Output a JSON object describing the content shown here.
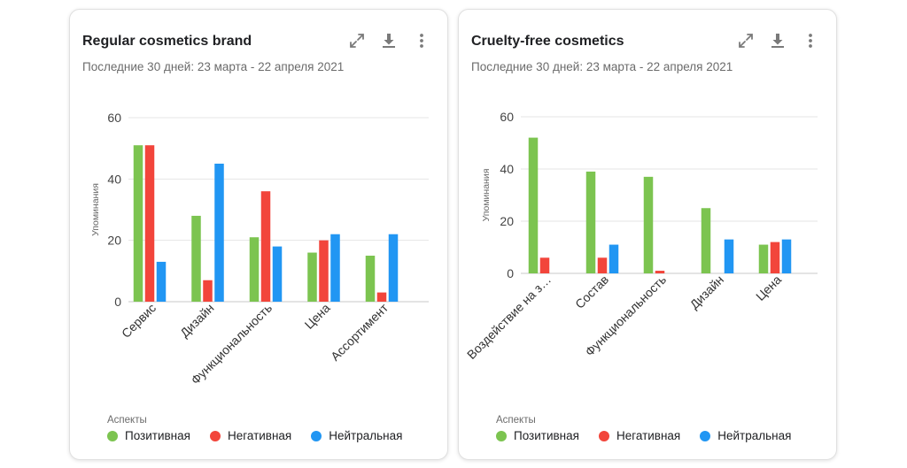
{
  "colors": {
    "positive": "#7cc450",
    "negative": "#f2453b",
    "neutral": "#2196f3"
  },
  "cards": [
    {
      "title": "Regular cosmetics brand",
      "subtitle": "Последние 30 дней: 23 марта - 22 апреля 2021",
      "legend_title": "Аспекты",
      "legend": [
        "Позитивная",
        "Негативная",
        "Нейтральная"
      ],
      "icons": {
        "expand": "expand-icon",
        "download": "download-icon",
        "more": "more-vert-icon"
      }
    },
    {
      "title": "Cruelty-free cosmetics",
      "subtitle": "Последние 30 дней: 23 марта - 22 апреля 2021",
      "legend_title": "Аспекты",
      "legend": [
        "Позитивная",
        "Негативная",
        "Нейтральная"
      ],
      "icons": {
        "expand": "expand-icon",
        "download": "download-icon",
        "more": "more-vert-icon"
      }
    }
  ],
  "chart_data": [
    {
      "type": "bar",
      "title": "Regular cosmetics brand",
      "ylabel": "Упоминания",
      "xlabel": "",
      "ylim": [
        0,
        60
      ],
      "yticks": [
        0,
        20,
        40,
        60
      ],
      "grid": true,
      "legend_position": "bottom",
      "categories": [
        "Сервис",
        "Дизайн",
        "Функциональность",
        "Цена",
        "Ассортимент"
      ],
      "series": [
        {
          "name": "Позитивная",
          "values": [
            51,
            28,
            21,
            16,
            15
          ]
        },
        {
          "name": "Негативная",
          "values": [
            51,
            7,
            36,
            20,
            3
          ]
        },
        {
          "name": "Нейтральная",
          "values": [
            13,
            45,
            18,
            22,
            22
          ]
        }
      ]
    },
    {
      "type": "bar",
      "title": "Cruelty-free cosmetics",
      "ylabel": "Упоминания",
      "xlabel": "",
      "ylim": [
        0,
        60
      ],
      "yticks": [
        0,
        20,
        40,
        60
      ],
      "grid": true,
      "legend_position": "bottom",
      "categories": [
        "Воздействие на з…",
        "Состав",
        "Функциональность",
        "Дизайн",
        "Цена"
      ],
      "series": [
        {
          "name": "Позитивная",
          "values": [
            52,
            39,
            37,
            25,
            11
          ]
        },
        {
          "name": "Негативная",
          "values": [
            6,
            6,
            1,
            0,
            12
          ]
        },
        {
          "name": "Нейтральная",
          "values": [
            0,
            11,
            0,
            13,
            13
          ]
        }
      ]
    }
  ]
}
